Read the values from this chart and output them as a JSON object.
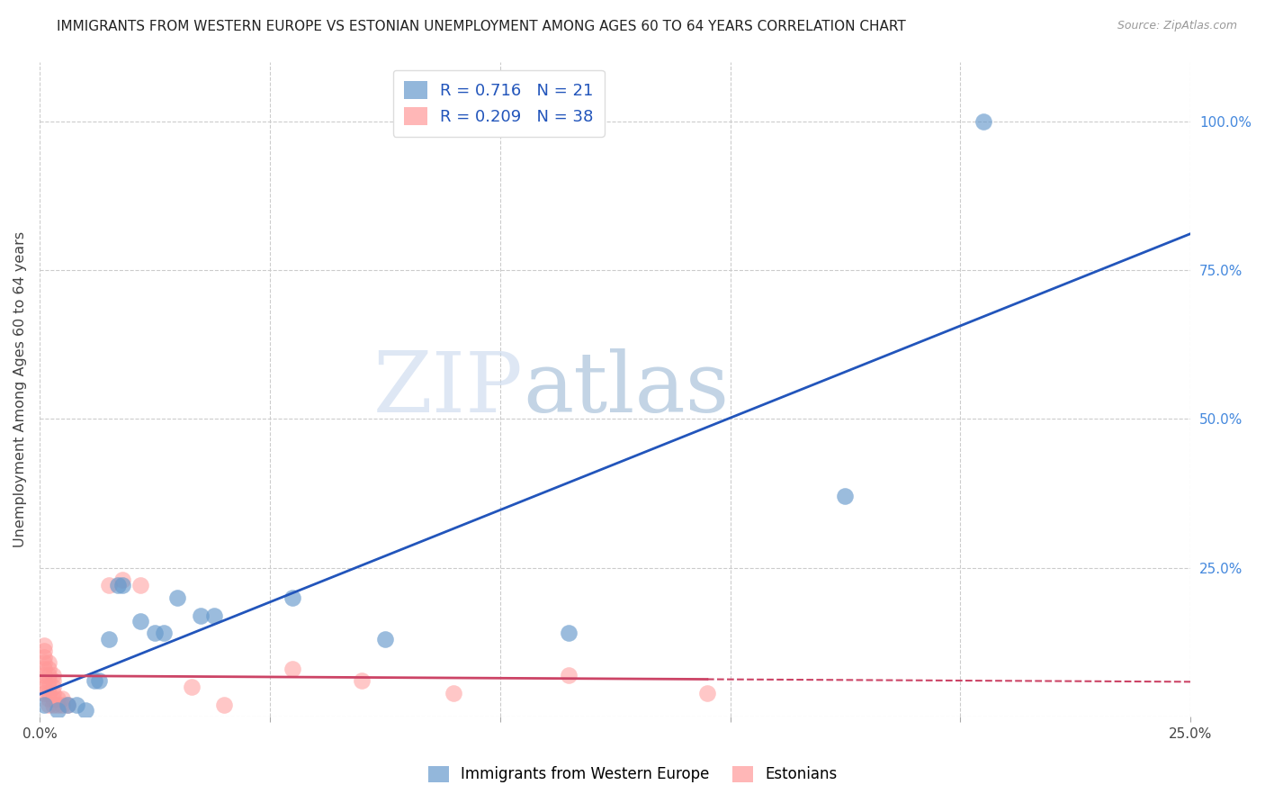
{
  "title": "IMMIGRANTS FROM WESTERN EUROPE VS ESTONIAN UNEMPLOYMENT AMONG AGES 60 TO 64 YEARS CORRELATION CHART",
  "source": "Source: ZipAtlas.com",
  "ylabel": "Unemployment Among Ages 60 to 64 years",
  "xlim": [
    0.0,
    0.25
  ],
  "ylim": [
    0.0,
    1.1
  ],
  "x_ticks": [
    0.0,
    0.05,
    0.1,
    0.15,
    0.2,
    0.25
  ],
  "x_tick_labels": [
    "0.0%",
    "",
    "",
    "",
    "",
    "25.0%"
  ],
  "y_ticks_right": [
    0.0,
    0.25,
    0.5,
    0.75,
    1.0
  ],
  "y_tick_labels_right": [
    "",
    "25.0%",
    "50.0%",
    "75.0%",
    "100.0%"
  ],
  "blue_R": 0.716,
  "blue_N": 21,
  "pink_R": 0.209,
  "pink_N": 38,
  "blue_color": "#6699CC",
  "pink_color": "#FF9999",
  "trendline_blue_color": "#2255BB",
  "trendline_pink_solid_color": "#CC4466",
  "trendline_pink_dashed_color": "#CC4466",
  "watermark_zip": "ZIP",
  "watermark_atlas": "atlas",
  "legend_label_blue": "Immigrants from Western Europe",
  "legend_label_pink": "Estonians",
  "blue_points": [
    [
      0.001,
      0.02
    ],
    [
      0.004,
      0.01
    ],
    [
      0.006,
      0.02
    ],
    [
      0.008,
      0.02
    ],
    [
      0.01,
      0.01
    ],
    [
      0.012,
      0.06
    ],
    [
      0.013,
      0.06
    ],
    [
      0.015,
      0.13
    ],
    [
      0.017,
      0.22
    ],
    [
      0.018,
      0.22
    ],
    [
      0.022,
      0.16
    ],
    [
      0.025,
      0.14
    ],
    [
      0.027,
      0.14
    ],
    [
      0.03,
      0.2
    ],
    [
      0.035,
      0.17
    ],
    [
      0.038,
      0.17
    ],
    [
      0.055,
      0.2
    ],
    [
      0.075,
      0.13
    ],
    [
      0.115,
      0.14
    ],
    [
      0.175,
      0.37
    ],
    [
      0.205,
      1.0
    ]
  ],
  "pink_points": [
    [
      0.001,
      0.09
    ],
    [
      0.001,
      0.1
    ],
    [
      0.001,
      0.11
    ],
    [
      0.001,
      0.12
    ],
    [
      0.001,
      0.04
    ],
    [
      0.001,
      0.05
    ],
    [
      0.001,
      0.06
    ],
    [
      0.001,
      0.07
    ],
    [
      0.001,
      0.08
    ],
    [
      0.002,
      0.02
    ],
    [
      0.002,
      0.03
    ],
    [
      0.002,
      0.04
    ],
    [
      0.002,
      0.05
    ],
    [
      0.002,
      0.06
    ],
    [
      0.002,
      0.07
    ],
    [
      0.002,
      0.08
    ],
    [
      0.002,
      0.09
    ],
    [
      0.003,
      0.02
    ],
    [
      0.003,
      0.03
    ],
    [
      0.003,
      0.04
    ],
    [
      0.003,
      0.05
    ],
    [
      0.003,
      0.06
    ],
    [
      0.003,
      0.07
    ],
    [
      0.004,
      0.02
    ],
    [
      0.004,
      0.03
    ],
    [
      0.005,
      0.02
    ],
    [
      0.005,
      0.03
    ],
    [
      0.006,
      0.02
    ],
    [
      0.015,
      0.22
    ],
    [
      0.018,
      0.23
    ],
    [
      0.022,
      0.22
    ],
    [
      0.033,
      0.05
    ],
    [
      0.04,
      0.02
    ],
    [
      0.055,
      0.08
    ],
    [
      0.07,
      0.06
    ],
    [
      0.09,
      0.04
    ],
    [
      0.115,
      0.07
    ],
    [
      0.145,
      0.04
    ]
  ],
  "background_color": "#FFFFFF",
  "grid_color": "#CCCCCC"
}
